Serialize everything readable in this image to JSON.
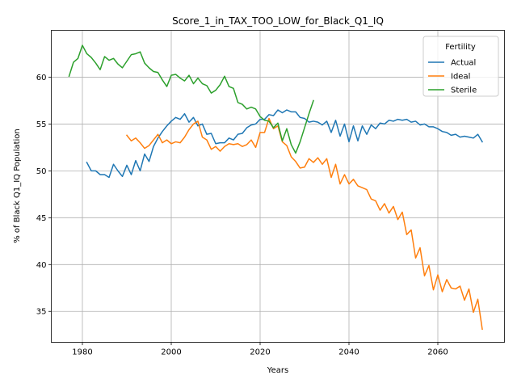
{
  "chart_data": {
    "type": "line",
    "title": "Score_1_in_TAX_TOO_LOW_for_Black_Q1_IQ",
    "xlabel": "Years",
    "ylabel": "% of Black Q1_IQ Population",
    "xlim": [
      1973,
      2075
    ],
    "ylim": [
      31.7,
      65.0
    ],
    "xticks": [
      1980,
      2000,
      2020,
      2040,
      2060
    ],
    "yticks": [
      35,
      40,
      45,
      50,
      55,
      60
    ],
    "grid": true,
    "legend": {
      "title": "Fertility",
      "position": "top-right"
    },
    "series": [
      {
        "name": "Actual",
        "color": "#1f77b4",
        "x": [
          1981,
          1982,
          1983,
          1984,
          1985,
          1986,
          1987,
          1988,
          1989,
          1990,
          1991,
          1992,
          1993,
          1994,
          1995,
          1996,
          1997,
          1998,
          1999,
          2000,
          2001,
          2002,
          2003,
          2004,
          2005,
          2006,
          2007,
          2008,
          2009,
          2010,
          2011,
          2012,
          2013,
          2014,
          2015,
          2016,
          2017,
          2018,
          2019,
          2020,
          2021,
          2022,
          2023,
          2024,
          2025,
          2026,
          2027,
          2028,
          2029,
          2030,
          2031,
          2032,
          2033,
          2034,
          2035,
          2036,
          2037,
          2038,
          2039,
          2040,
          2041,
          2042,
          2043,
          2044,
          2045,
          2046,
          2047,
          2048,
          2049,
          2050,
          2051,
          2052,
          2053,
          2054,
          2055,
          2056,
          2057,
          2058,
          2059,
          2060,
          2061,
          2062,
          2063,
          2064,
          2065,
          2066,
          2067,
          2068,
          2069,
          2070
        ],
        "values": [
          50.9,
          50.0,
          50.0,
          49.6,
          49.6,
          49.3,
          50.7,
          50.0,
          49.4,
          50.6,
          49.6,
          51.1,
          50.0,
          51.8,
          51.0,
          52.6,
          53.5,
          54.2,
          54.8,
          55.3,
          55.7,
          55.5,
          56.1,
          55.2,
          55.7,
          54.8,
          55.0,
          53.9,
          54.0,
          52.9,
          53.0,
          53.0,
          53.5,
          53.3,
          53.9,
          54.0,
          54.6,
          54.9,
          55.0,
          55.5,
          55.5,
          56.0,
          55.9,
          56.5,
          56.2,
          56.5,
          56.3,
          56.3,
          55.7,
          55.6,
          55.2,
          55.3,
          55.2,
          54.9,
          55.3,
          54.1,
          55.4,
          53.7,
          55.0,
          53.1,
          54.8,
          53.2,
          54.8,
          53.9,
          54.9,
          54.5,
          55.1,
          55.0,
          55.4,
          55.3,
          55.5,
          55.4,
          55.5,
          55.2,
          55.3,
          54.9,
          55.0,
          54.7,
          54.7,
          54.5,
          54.2,
          54.1,
          53.8,
          53.9,
          53.6,
          53.7,
          53.6,
          53.5,
          53.9,
          53.1
        ]
      },
      {
        "name": "Ideal",
        "color": "#ff7f0e",
        "x": [
          1990,
          1991,
          1992,
          1993,
          1994,
          1995,
          1996,
          1997,
          1998,
          1999,
          2000,
          2001,
          2002,
          2003,
          2004,
          2005,
          2006,
          2007,
          2008,
          2009,
          2010,
          2011,
          2012,
          2013,
          2014,
          2015,
          2016,
          2017,
          2018,
          2019,
          2020,
          2021,
          2022,
          2023,
          2024,
          2025,
          2026,
          2027,
          2028,
          2029,
          2030,
          2031,
          2032,
          2033,
          2034,
          2035,
          2036,
          2037,
          2038,
          2039,
          2040,
          2041,
          2042,
          2043,
          2044,
          2045,
          2046,
          2047,
          2048,
          2049,
          2050,
          2051,
          2052,
          2053,
          2054,
          2055,
          2056,
          2057,
          2058,
          2059,
          2060,
          2061,
          2062,
          2063,
          2064,
          2065,
          2066,
          2067,
          2068,
          2069,
          2070
        ],
        "values": [
          53.8,
          53.2,
          53.5,
          53.0,
          52.4,
          52.7,
          53.3,
          53.9,
          53.0,
          53.3,
          52.9,
          53.1,
          53.0,
          53.6,
          54.4,
          55.0,
          55.3,
          53.6,
          53.3,
          52.3,
          52.6,
          52.1,
          52.6,
          52.9,
          52.8,
          52.9,
          52.6,
          52.8,
          53.3,
          52.5,
          54.1,
          54.1,
          55.6,
          54.5,
          54.8,
          53.1,
          52.7,
          51.5,
          51.0,
          50.3,
          50.4,
          51.3,
          50.9,
          51.4,
          50.7,
          51.3,
          49.3,
          50.7,
          48.6,
          49.6,
          48.6,
          49.1,
          48.4,
          48.2,
          48.0,
          47.0,
          46.8,
          45.8,
          46.5,
          45.5,
          46.2,
          44.8,
          45.6,
          43.2,
          43.7,
          40.7,
          41.8,
          38.8,
          39.9,
          37.3,
          38.9,
          37.1,
          38.4,
          37.5,
          37.4,
          37.7,
          36.2,
          37.4,
          34.9,
          36.3,
          33.1
        ]
      },
      {
        "name": "Sterile",
        "color": "#2ca02c",
        "x": [
          1977,
          1978,
          1979,
          1980,
          1981,
          1982,
          1983,
          1984,
          1985,
          1986,
          1987,
          1988,
          1989,
          1990,
          1991,
          1992,
          1993,
          1994,
          1995,
          1996,
          1997,
          1998,
          1999,
          2000,
          2001,
          2002,
          2003,
          2004,
          2005,
          2006,
          2007,
          2008,
          2009,
          2010,
          2011,
          2012,
          2013,
          2014,
          2015,
          2016,
          2017,
          2018,
          2019,
          2020,
          2021,
          2022,
          2023,
          2024,
          2025,
          2026,
          2027,
          2028,
          2029,
          2030,
          2031,
          2032
        ],
        "values": [
          60.1,
          61.6,
          62.0,
          63.4,
          62.5,
          62.1,
          61.5,
          60.8,
          62.2,
          61.8,
          62.0,
          61.4,
          61.0,
          61.7,
          62.4,
          62.5,
          62.7,
          61.5,
          61.0,
          60.6,
          60.5,
          59.7,
          59.0,
          60.2,
          60.3,
          59.9,
          59.6,
          60.2,
          59.3,
          59.9,
          59.3,
          59.1,
          58.3,
          58.6,
          59.2,
          60.1,
          59.0,
          58.8,
          57.3,
          57.1,
          56.6,
          56.8,
          56.6,
          55.8,
          55.4,
          55.3,
          54.6,
          55.1,
          53.2,
          54.5,
          52.8,
          51.9,
          53.1,
          54.6,
          56.1,
          57.5
        ]
      }
    ]
  }
}
